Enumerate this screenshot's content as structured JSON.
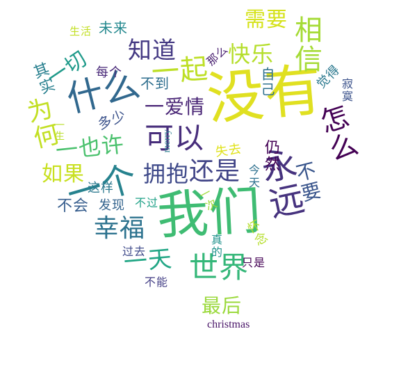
{
  "words": [
    {
      "text": "没有",
      "color": "#e0e021"
    },
    {
      "text": "我们",
      "color": "#3fbc73"
    },
    {
      "text": "一个",
      "color": "#26828e"
    },
    {
      "text": "永远",
      "color": "#46327e"
    },
    {
      "text": "什么",
      "color": "#31688e"
    },
    {
      "text": "相信",
      "color": "#a5db36"
    },
    {
      "text": "怎么",
      "color": "#440154"
    },
    {
      "text": "世界",
      "color": "#35b779"
    },
    {
      "text": "可以",
      "color": "#472d7b"
    },
    {
      "text": "一起",
      "color": "#bddf26"
    },
    {
      "text": "为何",
      "color": "#c2df23"
    },
    {
      "text": "知道",
      "color": "#443983"
    },
    {
      "text": "幸福",
      "color": "#2c728e"
    },
    {
      "text": "一天",
      "color": "#21a685"
    },
    {
      "text": "还是",
      "color": "#414487"
    },
    {
      "text": "拥抱",
      "color": "#3e4989"
    },
    {
      "text": "一也许",
      "color": "#4ac16d"
    },
    {
      "text": "快乐",
      "color": "#b5de2b"
    },
    {
      "text": "需要",
      "color": "#d5e21a"
    },
    {
      "text": "一切",
      "color": "#1f9a8a"
    },
    {
      "text": "如果",
      "color": "#c8e020"
    },
    {
      "text": "不要",
      "color": "#39558c"
    },
    {
      "text": "最后",
      "color": "#9bd93c"
    },
    {
      "text": "一爱情",
      "color": "#482475"
    },
    {
      "text": "其实",
      "color": "#277f8e"
    },
    {
      "text": "未来",
      "color": "#23888e"
    },
    {
      "text": "不到",
      "color": "#2e6e8e"
    },
    {
      "text": "不会",
      "color": "#365d8d"
    },
    {
      "text": "发现",
      "color": "#33638d"
    },
    {
      "text": "这样",
      "color": "#2a788e"
    },
    {
      "text": "多少",
      "color": "#3b528b"
    },
    {
      "text": "每个",
      "color": "#482878"
    },
    {
      "text": "自己",
      "color": "#2d708e"
    },
    {
      "text": "仍然",
      "color": "#440154"
    },
    {
      "text": "不过",
      "color": "#1fa187"
    },
    {
      "text": "失去",
      "color": "#e0e21c"
    },
    {
      "text": "今天",
      "color": "#2d708e"
    },
    {
      "text": "觉得",
      "color": "#2a788e"
    },
    {
      "text": "寂寞",
      "color": "#3b528b"
    },
    {
      "text": "那么",
      "color": "#481f70"
    },
    {
      "text": "生活",
      "color": "#c2df23"
    },
    {
      "text": "一生",
      "color": "#b8de29"
    },
    {
      "text": "merry",
      "color": "#287d8e"
    },
    {
      "text": "一次",
      "color": "#a0da39"
    },
    {
      "text": "怀念",
      "color": "#b5de2b"
    },
    {
      "text": "真的",
      "color": "#20928c"
    },
    {
      "text": "只是",
      "color": "#440154"
    },
    {
      "text": "过去",
      "color": "#3e4989"
    },
    {
      "text": "不能",
      "color": "#433e85"
    },
    {
      "text": "christmas",
      "color": "#481467"
    }
  ]
}
